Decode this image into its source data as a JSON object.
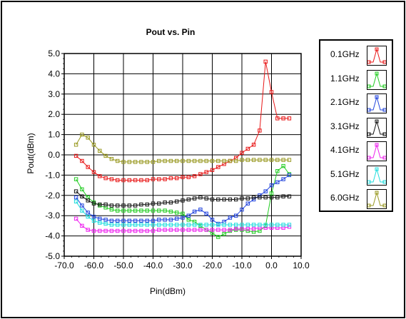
{
  "chart_data": {
    "type": "line",
    "title": "Pout vs. Pin",
    "xlabel": "Pin(dBm)",
    "ylabel": "Pout(dBm)",
    "xlim": [
      -70,
      10
    ],
    "ylim": [
      -5,
      5
    ],
    "xticks": [
      "-70.0",
      "-60.0",
      "-50.0",
      "-40.0",
      "-30.0",
      "-20.0",
      "-10.0",
      "0.0",
      "10.0"
    ],
    "yticks": [
      "5.0",
      "4.0",
      "3.0",
      "2.0",
      "1.0",
      "0.0",
      "-1.0",
      "-2.0",
      "-3.0",
      "-4.0",
      "-5.0"
    ],
    "grid": true,
    "legend_position": "right",
    "series": [
      {
        "name": "0.1GHz",
        "color": "#e81818",
        "x": [
          -66,
          -64,
          -62,
          -60,
          -58,
          -56,
          -54,
          -52,
          -50,
          -48,
          -46,
          -44,
          -42,
          -40,
          -38,
          -36,
          -34,
          -32,
          -30,
          -28,
          -26,
          -24,
          -22,
          -20,
          -18,
          -16,
          -14,
          -12,
          -10,
          -8,
          -6,
          -4,
          -2,
          0,
          2,
          4,
          6
        ],
        "y": [
          -0.05,
          -0.3,
          -0.6,
          -0.85,
          -1.05,
          -1.15,
          -1.2,
          -1.25,
          -1.25,
          -1.25,
          -1.25,
          -1.25,
          -1.25,
          -1.2,
          -1.2,
          -1.2,
          -1.15,
          -1.15,
          -1.1,
          -1.1,
          -1.05,
          -0.95,
          -0.85,
          -0.75,
          -0.6,
          -0.45,
          -0.3,
          -0.15,
          0.1,
          0.3,
          0.5,
          1.2,
          4.6,
          3.1,
          1.8,
          1.8,
          1.8
        ]
      },
      {
        "name": "1.1GHz",
        "color": "#22cc22",
        "x": [
          -66,
          -64,
          -62,
          -60,
          -58,
          -56,
          -54,
          -52,
          -50,
          -48,
          -46,
          -44,
          -42,
          -40,
          -38,
          -36,
          -34,
          -32,
          -30,
          -28,
          -26,
          -24,
          -22,
          -20,
          -18,
          -16,
          -14,
          -12,
          -10,
          -8,
          -6,
          -4,
          -2,
          0,
          2,
          4,
          6
        ],
        "y": [
          -1.2,
          -1.7,
          -2.1,
          -2.35,
          -2.5,
          -2.6,
          -2.7,
          -2.75,
          -2.75,
          -2.75,
          -2.75,
          -2.75,
          -2.75,
          -2.75,
          -2.75,
          -2.75,
          -2.8,
          -2.85,
          -2.9,
          -3.2,
          -3.3,
          -3.5,
          -3.7,
          -3.85,
          -4.05,
          -3.9,
          -3.75,
          -3.7,
          -3.7,
          -3.75,
          -3.8,
          -3.75,
          -3.5,
          -1.9,
          -0.8,
          -0.55,
          -0.95
        ]
      },
      {
        "name": "2.1GHz",
        "color": "#2244dd",
        "x": [
          -66,
          -64,
          -62,
          -60,
          -58,
          -56,
          -54,
          -52,
          -50,
          -48,
          -46,
          -44,
          -42,
          -40,
          -38,
          -36,
          -34,
          -32,
          -30,
          -28,
          -26,
          -24,
          -22,
          -20,
          -18,
          -16,
          -14,
          -12,
          -10,
          -8,
          -6,
          -4,
          -2,
          0,
          2,
          4,
          6
        ],
        "y": [
          -2.1,
          -2.5,
          -2.85,
          -3.05,
          -3.15,
          -3.2,
          -3.25,
          -3.25,
          -3.25,
          -3.25,
          -3.25,
          -3.25,
          -3.25,
          -3.25,
          -3.2,
          -3.2,
          -3.2,
          -3.15,
          -3.1,
          -3.0,
          -2.8,
          -2.7,
          -2.9,
          -3.2,
          -3.4,
          -3.3,
          -3.1,
          -3.0,
          -2.7,
          -2.4,
          -2.2,
          -2.0,
          -1.8,
          -1.5,
          -1.35,
          -1.2,
          -1.0
        ]
      },
      {
        "name": "3.1GHz",
        "color": "#111111",
        "x": [
          -66,
          -64,
          -62,
          -60,
          -58,
          -56,
          -54,
          -52,
          -50,
          -48,
          -46,
          -44,
          -42,
          -40,
          -38,
          -36,
          -34,
          -32,
          -30,
          -28,
          -26,
          -24,
          -22,
          -20,
          -18,
          -16,
          -14,
          -12,
          -10,
          -8,
          -6,
          -4,
          -2,
          0,
          2,
          4,
          6
        ],
        "y": [
          -1.8,
          -2.05,
          -2.25,
          -2.4,
          -2.45,
          -2.45,
          -2.5,
          -2.5,
          -2.5,
          -2.5,
          -2.5,
          -2.45,
          -2.45,
          -2.4,
          -2.4,
          -2.35,
          -2.35,
          -2.3,
          -2.25,
          -2.2,
          -2.15,
          -2.1,
          -2.15,
          -2.2,
          -2.2,
          -2.2,
          -2.2,
          -2.2,
          -2.15,
          -2.15,
          -2.1,
          -2.1,
          -2.1,
          -2.1,
          -2.1,
          -2.05,
          -2.05
        ]
      },
      {
        "name": "4.1GHz",
        "color": "#ee22ee",
        "x": [
          -66,
          -64,
          -62,
          -60,
          -58,
          -56,
          -54,
          -52,
          -50,
          -48,
          -46,
          -44,
          -42,
          -40,
          -38,
          -36,
          -34,
          -32,
          -30,
          -28,
          -26,
          -24,
          -22,
          -20,
          -18,
          -16,
          -14,
          -12,
          -10,
          -8,
          -6,
          -4,
          -2,
          0,
          2,
          4,
          6
        ],
        "y": [
          -3.15,
          -3.5,
          -3.7,
          -3.75,
          -3.75,
          -3.75,
          -3.75,
          -3.75,
          -3.75,
          -3.75,
          -3.75,
          -3.75,
          -3.75,
          -3.75,
          -3.7,
          -3.7,
          -3.7,
          -3.7,
          -3.7,
          -3.7,
          -3.7,
          -3.7,
          -3.7,
          -3.7,
          -3.7,
          -3.7,
          -3.7,
          -3.65,
          -3.65,
          -3.65,
          -3.65,
          -3.6,
          -3.6,
          -3.6,
          -3.6,
          -3.6,
          -3.55
        ]
      },
      {
        "name": "5.1GHz",
        "color": "#22dddd",
        "x": [
          -66,
          -64,
          -62,
          -60,
          -58,
          -56,
          -54,
          -52,
          -50,
          -48,
          -46,
          -44,
          -42,
          -40,
          -38,
          -36,
          -34,
          -32,
          -30,
          -28,
          -26,
          -24,
          -22,
          -20,
          -18,
          -16,
          -14,
          -12,
          -10,
          -8,
          -6,
          -4,
          -2,
          0,
          2,
          4,
          6
        ],
        "y": [
          -2.3,
          -2.75,
          -3.05,
          -3.25,
          -3.35,
          -3.4,
          -3.45,
          -3.45,
          -3.45,
          -3.45,
          -3.45,
          -3.45,
          -3.45,
          -3.45,
          -3.45,
          -3.45,
          -3.45,
          -3.45,
          -3.45,
          -3.45,
          -3.45,
          -3.45,
          -3.45,
          -3.45,
          -3.45,
          -3.45,
          -3.45,
          -3.45,
          -3.45,
          -3.45,
          -3.45,
          -3.45,
          -3.45,
          -3.45,
          -3.45,
          -3.45,
          -3.45
        ]
      },
      {
        "name": "6.0GHz",
        "color": "#999922",
        "x": [
          -66,
          -64,
          -62,
          -60,
          -58,
          -56,
          -54,
          -52,
          -50,
          -48,
          -46,
          -44,
          -42,
          -40,
          -38,
          -36,
          -34,
          -32,
          -30,
          -28,
          -26,
          -24,
          -22,
          -20,
          -18,
          -16,
          -14,
          -12,
          -10,
          -8,
          -6,
          -4,
          -2,
          0,
          2,
          4,
          6
        ],
        "y": [
          0.5,
          1.0,
          0.85,
          0.5,
          0.2,
          -0.05,
          -0.2,
          -0.3,
          -0.35,
          -0.35,
          -0.35,
          -0.35,
          -0.35,
          -0.35,
          -0.3,
          -0.3,
          -0.3,
          -0.3,
          -0.3,
          -0.3,
          -0.3,
          -0.3,
          -0.3,
          -0.3,
          -0.3,
          -0.3,
          -0.3,
          -0.3,
          -0.25,
          -0.25,
          -0.25,
          -0.25,
          -0.25,
          -0.25,
          -0.25,
          -0.25,
          -0.25
        ]
      }
    ]
  }
}
